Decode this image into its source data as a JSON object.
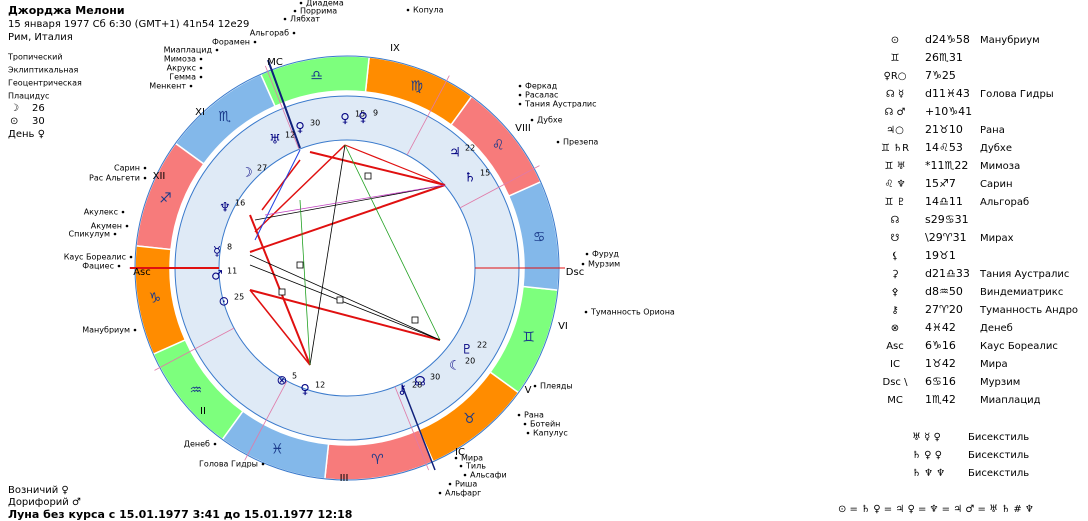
{
  "header": {
    "name": "Джорджа Мелони",
    "line1": "15 января 1977  Сб   6:30 (GMT+1) 41n54  12e29",
    "line2": "Рим, Италия"
  },
  "settings": [
    "Тропический",
    "Эклиптикальная",
    "Геоцентрическая",
    "Плацидус"
  ],
  "luminaries": [
    {
      "glyph": "☽",
      "value": "26"
    },
    {
      "glyph": "⊙",
      "value": "30"
    }
  ],
  "day": "День ♀",
  "houses": [
    "IX",
    "VIII",
    "XI",
    "XII",
    "Asc",
    "Dsc",
    "MC",
    "IC",
    "II",
    "III",
    "V",
    "VI"
  ],
  "signs": [
    "♈",
    "♉",
    "♊",
    "♋",
    "♌",
    "♍",
    "♎",
    "♏",
    "♐",
    "♑",
    "♒",
    "♓"
  ],
  "sign_colors": [
    "#f77b7b",
    "#ff8c00",
    "#7dff7d",
    "#83b8ea",
    "#f77b7b",
    "#ff8c00",
    "#7dff7d",
    "#83b8ea",
    "#f77b7b",
    "#ff8c00",
    "#7dff7d",
    "#83b8ea"
  ],
  "planets": [
    {
      "glyph": "♅",
      "degree": "12"
    },
    {
      "glyph": "♀",
      "degree": "30"
    },
    {
      "glyph": "♀",
      "degree": "15"
    },
    {
      "glyph": "♀",
      "degree": "9"
    },
    {
      "glyph": "☽",
      "degree": "27"
    },
    {
      "glyph": "♆",
      "degree": "16"
    },
    {
      "glyph": "☿",
      "degree": "8"
    },
    {
      "glyph": "♂",
      "degree": "11"
    },
    {
      "glyph": "⊙",
      "degree": "25"
    },
    {
      "glyph": "♃",
      "degree": "22"
    },
    {
      "glyph": "♄",
      "degree": "15"
    },
    {
      "glyph": "♇",
      "degree": "22"
    },
    {
      "glyph": "☾",
      "degree": "20"
    },
    {
      "glyph": "⚷",
      "degree": "28"
    },
    {
      "glyph": "☊",
      "degree": "30"
    },
    {
      "glyph": "⊗",
      "degree": "5"
    },
    {
      "glyph": "♀",
      "degree": "12"
    }
  ],
  "stars": [
    "Диадема",
    "Поррима",
    "Лябхат",
    "Копула",
    "Альгораб",
    "Форамен",
    "Миаплацид",
    "Мимоза",
    "Акрукс",
    "Гемма",
    "Менкент",
    "Феркад",
    "Расалас",
    "Тания Аустралис",
    "Дубхе",
    "Презепа",
    "Сарин",
    "Рас Альгети",
    "Акулекс",
    "Акумен",
    "Спикулум",
    "Каус Бореалис",
    "Фациес",
    "Фуруд",
    "Мурзим",
    "Туманность Ориона",
    "Манубриум",
    "Плеяды",
    "Рана",
    "Ботейн",
    "Капулус",
    "Денеб",
    "Голова Гидры",
    "Мира",
    "Тиль",
    "Альсафи",
    "Риша",
    "Альфарг"
  ],
  "table": [
    [
      "⊙",
      "d24♑58",
      "Манубриум"
    ],
    [
      "♊",
      "26♏31",
      ""
    ],
    [
      "♀R○",
      "7♑25",
      ""
    ],
    [
      "☊ ☿",
      "d11♓43",
      "Голова Гидры"
    ],
    [
      "☊ ♂",
      "+10♑41",
      ""
    ],
    [
      "♃○",
      "21♉10",
      "Рана"
    ],
    [
      "♊ ♄R",
      "14♌53",
      "Дубхе"
    ],
    [
      "♊ ♅",
      "*11♏22",
      "Мимоза"
    ],
    [
      "♌ ♆",
      "15♐7",
      "Сарин"
    ],
    [
      "♊ ♇",
      "14♎11",
      "Альгораб"
    ],
    [
      "☊",
      "s29♋31",
      ""
    ],
    [
      "☋",
      "\\29♈31",
      "Мирах"
    ],
    [
      "⚸",
      "19♉1",
      ""
    ],
    [
      "⚳",
      "d21♎33",
      "Тания Аустралис"
    ],
    [
      "⚴",
      "d8♒50",
      "Виндемиатрикс"
    ],
    [
      "⚷",
      "27♈20",
      "Туманность Андро"
    ],
    [
      "⊗",
      "4♓42",
      "Денеб"
    ],
    [
      "Asc",
      "6♑16",
      "Каус Бореалис"
    ],
    [
      "IC",
      "1♉42",
      "Мира"
    ],
    [
      "Dsc \\",
      "6♋16",
      "Мурзим"
    ],
    [
      "MC",
      "1♏42",
      "Миаплацид"
    ]
  ],
  "bisextiles": [
    [
      "♅ ☿ ♀",
      "Бисекстиль"
    ],
    [
      "♄ ♀ ♀",
      "Бисекстиль"
    ],
    [
      "♄ ♆ ♆",
      "Бисекстиль"
    ]
  ],
  "footer": {
    "stars": [
      "Возничий ♀",
      "Дорифорий ♂"
    ],
    "moon_void": "Луна без курса с 15.01.1977  3:41 до 15.01.1977 12:18",
    "formula": "⊙ = ♄ ♀ = ♃ ♀ = ♆ = ♃ ♂ = ♅ ♄ # ♆"
  }
}
